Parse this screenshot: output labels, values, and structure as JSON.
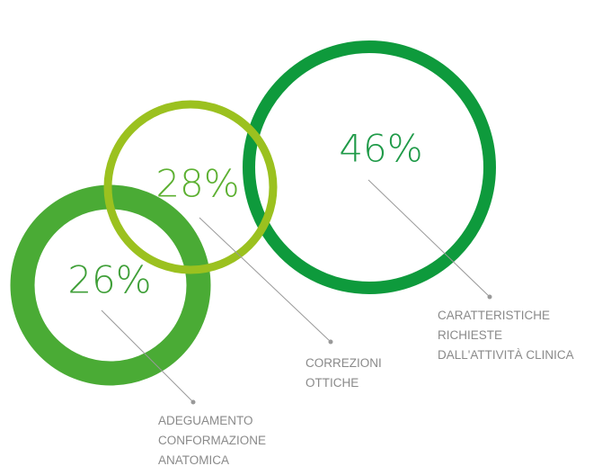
{
  "chart_data": {
    "type": "rings",
    "series": [
      {
        "name": [
          "ADEGUAMENTO",
          "CONFORMAZIONE",
          "ANATOMICA"
        ],
        "color": "#4aab35",
        "values": [
          26
        ],
        "value_labels": [
          "26%"
        ]
      },
      {
        "name": [
          "CARATTERISTICHE",
          "RICHIESTE",
          "DALL'ATTIVITÀ CLINICA"
        ],
        "color": "#0e9a3c",
        "values": [
          46
        ],
        "value_labels": [
          "46%"
        ]
      },
      {
        "name": [
          "CORREZIONI",
          "OTTICHE"
        ],
        "color": "#9bc11f",
        "values": [
          28
        ],
        "value_labels": [
          "28%"
        ]
      }
    ]
  }
}
